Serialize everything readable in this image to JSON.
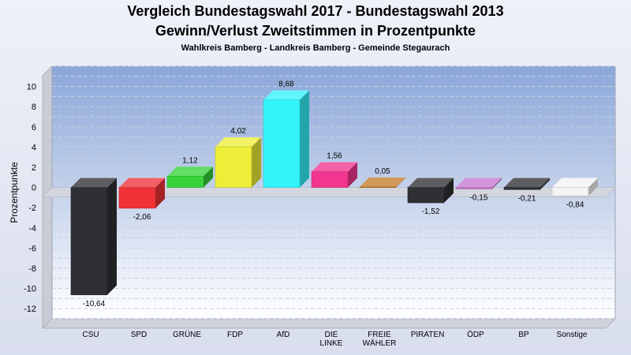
{
  "chart_data": {
    "type": "bar",
    "title": "Vergleich Bundestagswahl 2017 - Bundestagswahl 2013",
    "subtitle": "Gewinn/Verlust Zweitstimmen in Prozentpunkte",
    "subsubtitle": "Wahlkreis Bamberg - Landkreis Bamberg - Gemeinde Stegaurach",
    "xlabel": "",
    "ylabel": "Prozentpunkte",
    "ylim": [
      -13,
      12
    ],
    "yticks": [
      10,
      8,
      6,
      4,
      2,
      0,
      -2,
      -4,
      -6,
      -8,
      -10,
      -12
    ],
    "grid": true,
    "categories": [
      "CSU",
      "SPD",
      "GRÜNE",
      "FDP",
      "AfD",
      "DIE LINKE",
      "FREIE WÄHLER",
      "PIRATEN",
      "ÖDP",
      "BP",
      "Sonstige"
    ],
    "values": [
      -10.64,
      -2.06,
      1.12,
      4.02,
      8.68,
      1.56,
      0.05,
      -1.52,
      -0.15,
      -0.21,
      -0.84
    ],
    "value_labels": [
      "-10,64",
      "-2,06",
      "1,12",
      "4,02",
      "8,68",
      "1,56",
      "0,05",
      "-1,52",
      "-0,15",
      "-0,21",
      "-0,84"
    ],
    "colors": [
      "#2f3034",
      "#f03238",
      "#37d33a",
      "#eeee38",
      "#33f4fb",
      "#f2358e",
      "#c77d2c",
      "#2f3034",
      "#c777d0",
      "#2f3034",
      "#f4f4f6"
    ],
    "plot_background": [
      "#8aa6d8",
      "#ffffff"
    ]
  }
}
